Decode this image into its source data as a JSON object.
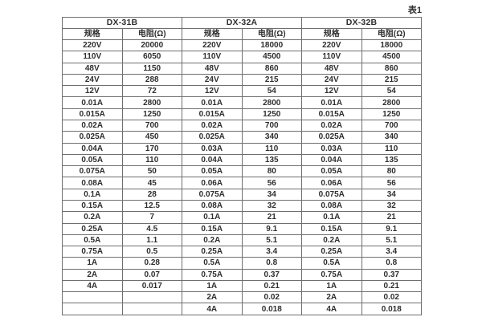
{
  "page_label": "表1",
  "table": {
    "groups": [
      {
        "title": "DX-31B"
      },
      {
        "title": "DX-32A"
      },
      {
        "title": "DX-32B"
      }
    ],
    "col_headers": {
      "spec": "规格",
      "resistance": "电阻(Ω)"
    },
    "rows": [
      [
        "220V",
        "20000",
        "220V",
        "18000",
        "220V",
        "18000"
      ],
      [
        "110V",
        "6050",
        "110V",
        "4500",
        "110V",
        "4500"
      ],
      [
        "48V",
        "1150",
        "48V",
        "860",
        "48V",
        "860"
      ],
      [
        "24V",
        "288",
        "24V",
        "215",
        "24V",
        "215"
      ],
      [
        "12V",
        "72",
        "12V",
        "54",
        "12V",
        "54"
      ],
      [
        "0.01A",
        "2800",
        "0.01A",
        "2800",
        "0.01A",
        "2800"
      ],
      [
        "0.015A",
        "1250",
        "0.015A",
        "1250",
        "0.015A",
        "1250"
      ],
      [
        "0.02A",
        "700",
        "0.02A",
        "700",
        "0.02A",
        "700"
      ],
      [
        "0.025A",
        "450",
        "0.025A",
        "340",
        "0.025A",
        "340"
      ],
      [
        "0.04A",
        "170",
        "0.03A",
        "110",
        "0.03A",
        "110"
      ],
      [
        "0.05A",
        "110",
        "0.04A",
        "135",
        "0.04A",
        "135"
      ],
      [
        "0.075A",
        "50",
        "0.05A",
        "80",
        "0.05A",
        "80"
      ],
      [
        "0.08A",
        "45",
        "0.06A",
        "56",
        "0.06A",
        "56"
      ],
      [
        "0.1A",
        "28",
        "0.075A",
        "34",
        "0.075A",
        "34"
      ],
      [
        "0.15A",
        "12.5",
        "0.08A",
        "32",
        "0.08A",
        "32"
      ],
      [
        "0.2A",
        "7",
        "0.1A",
        "21",
        "0.1A",
        "21"
      ],
      [
        "0.25A",
        "4.5",
        "0.15A",
        "9.1",
        "0.15A",
        "9.1"
      ],
      [
        "0.5A",
        "1.1",
        "0.2A",
        "5.1",
        "0.2A",
        "5.1"
      ],
      [
        "0.75A",
        "0.5",
        "0.25A",
        "3.4",
        "0.25A",
        "3.4"
      ],
      [
        "1A",
        "0.28",
        "0.5A",
        "0.8",
        "0.5A",
        "0.8"
      ],
      [
        "2A",
        "0.07",
        "0.75A",
        "0.37",
        "0.75A",
        "0.37"
      ],
      [
        "4A",
        "0.017",
        "1A",
        "0.21",
        "1A",
        "0.21"
      ],
      [
        "",
        "",
        "2A",
        "0.02",
        "2A",
        "0.02"
      ],
      [
        "",
        "",
        "4A",
        "0.018",
        "4A",
        "0.018"
      ]
    ]
  }
}
